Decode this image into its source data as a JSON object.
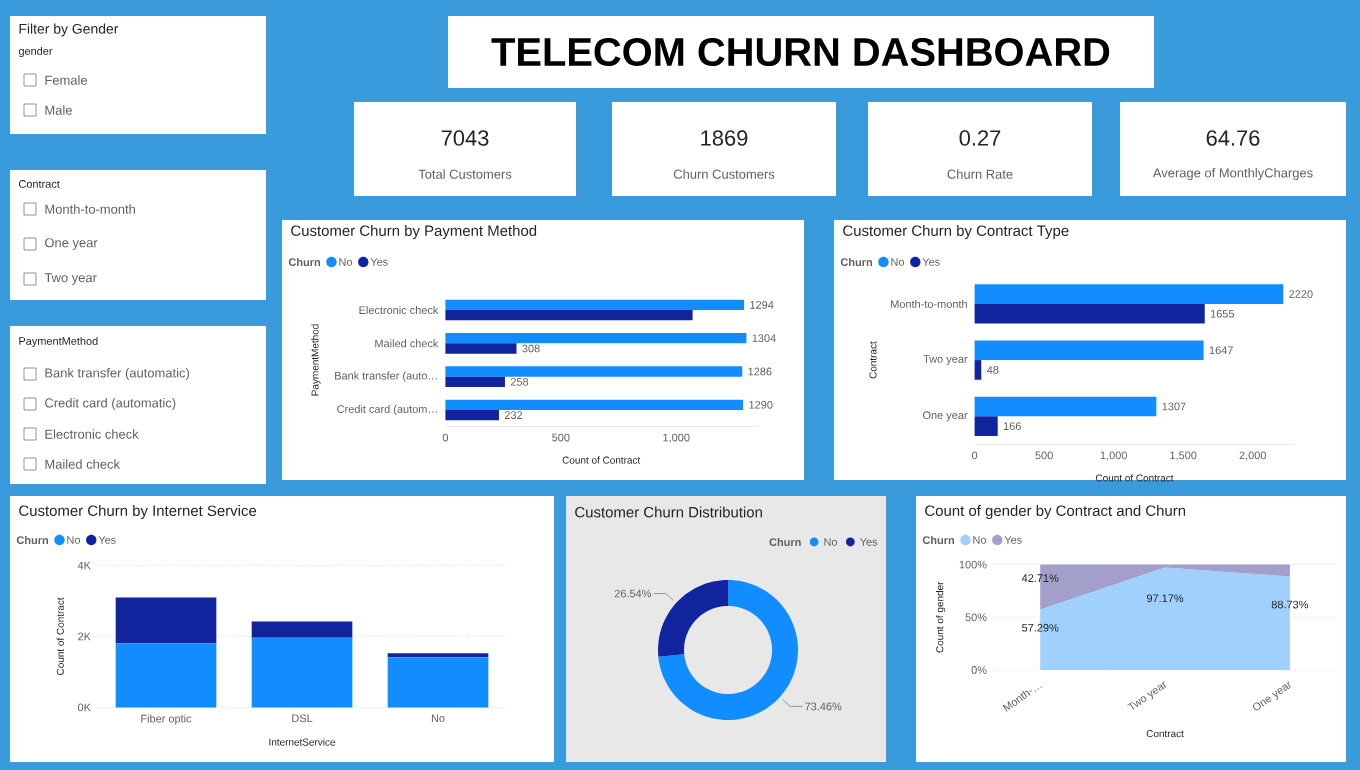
{
  "chart_data": [
    {
      "type": "other",
      "title": "Filter by Gender",
      "subtitle": "gender",
      "categories": [
        "Female",
        "Male"
      ]
    },
    {
      "type": "other",
      "title": "Contract",
      "categories": [
        "Month-to-month",
        "One year",
        "Two year"
      ]
    },
    {
      "type": "other",
      "title": "PaymentMethod",
      "categories": [
        "Bank transfer (automatic)",
        "Credit card (automatic)",
        "Electronic check",
        "Mailed check"
      ]
    },
    {
      "type": "other",
      "title": "TELECOM CHURN DASHBOARD"
    },
    {
      "type": "other",
      "categories": [
        "Total Customers",
        "Churn Customers",
        "Churn Rate",
        "Average of MonthlyCharges"
      ],
      "values": [
        7043,
        1869,
        0.27,
        64.76
      ],
      "data_labels": true
    },
    {
      "type": "bar",
      "orientation": "horizontal",
      "title": "Customer Churn by Payment Method",
      "legend_title": "Churn",
      "legend": "top left",
      "xlabel": "Count of Contract",
      "ylabel": "PaymentMethod",
      "categories": [
        "Electronic check",
        "Mailed check",
        "Bank transfer (auto…",
        "Credit card (autom…"
      ],
      "xlim": [
        0,
        1350
      ],
      "xticks": [
        0,
        500,
        {
          "value": 1000,
          "label": "1,000"
        }
      ],
      "series": [
        {
          "name": "No",
          "color": "#118dff",
          "values": [
            1294,
            1304,
            1286,
            1290
          ],
          "value_labels": [
            "1294",
            "1304",
            "1286",
            "1290"
          ]
        },
        {
          "name": "Yes",
          "color": "#12239e",
          "values": [
            1071,
            308,
            258,
            232
          ],
          "value_labels": [
            null,
            "308",
            "258",
            "232"
          ]
        }
      ]
    },
    {
      "type": "bar",
      "orientation": "horizontal",
      "title": "Customer Churn by Contract Type",
      "legend_title": "Churn",
      "legend": "top left",
      "xlabel": "Count of Contract",
      "ylabel": "Contract",
      "categories": [
        "Month-to-month",
        "Two year",
        "One year"
      ],
      "xlim": [
        0,
        2300
      ],
      "xticks": [
        0,
        500,
        {
          "value": 1000,
          "label": "1,000"
        },
        {
          "value": 1500,
          "label": "1,500"
        },
        {
          "value": 2000,
          "label": "2,000"
        }
      ],
      "data_labels": true,
      "series": [
        {
          "name": "No",
          "color": "#118dff",
          "values": [
            2220,
            1647,
            1307
          ]
        },
        {
          "name": "Yes",
          "color": "#12239e",
          "values": [
            1655,
            48,
            166
          ]
        }
      ]
    },
    {
      "type": "bar",
      "stacked": true,
      "title": "Customer Churn by Internet Service",
      "legend_title": "Churn",
      "legend": "top left",
      "xlabel": "InternetService",
      "ylabel": "Count of Contract",
      "categories": [
        "Fiber optic",
        "DSL",
        "No"
      ],
      "ylim": [
        0,
        4000
      ],
      "yticks": [
        {
          "value": 0,
          "label": "0K"
        },
        {
          "value": 2000,
          "label": "2K"
        },
        {
          "value": 4000,
          "label": "4K"
        }
      ],
      "grid": "y",
      "series": [
        {
          "name": "No",
          "color": "#118dff",
          "values": [
            1799,
            1962,
            1413
          ]
        },
        {
          "name": "Yes",
          "color": "#12239e",
          "values": [
            1297,
            459,
            113
          ]
        }
      ]
    },
    {
      "type": "donut",
      "title": "Customer Churn Distribution",
      "legend_title": "Churn",
      "legend": "top right",
      "categories": [
        "No",
        "Yes"
      ],
      "values": [
        73.46,
        26.54
      ],
      "colors": [
        "#118dff",
        "#12239e"
      ],
      "value_labels": [
        "73.46%",
        "26.54%"
      ]
    },
    {
      "type": "area",
      "stacked": true,
      "title": "Count of gender by Contract and Churn",
      "legend_title": "Churn",
      "legend": "top left",
      "xlabel": "Contract",
      "ylabel": "Count of gender",
      "categories": [
        "Month-…",
        "Two year",
        "One year"
      ],
      "ylim": [
        0,
        100
      ],
      "yticks": [
        {
          "value": 0,
          "label": "0%"
        },
        {
          "value": 50,
          "label": "50%"
        },
        {
          "value": 100,
          "label": "100%"
        }
      ],
      "grid": "y",
      "series": [
        {
          "name": "No",
          "color": "#a0d0fd",
          "values": [
            57.29,
            97.17,
            88.73
          ],
          "value_labels": [
            "57.29%",
            "97.17%",
            "88.73%"
          ]
        },
        {
          "name": "Yes",
          "color": "#a29fcb",
          "values": [
            42.71,
            2.83,
            11.27
          ],
          "value_labels": [
            "42.71%",
            null,
            null
          ]
        }
      ]
    }
  ]
}
